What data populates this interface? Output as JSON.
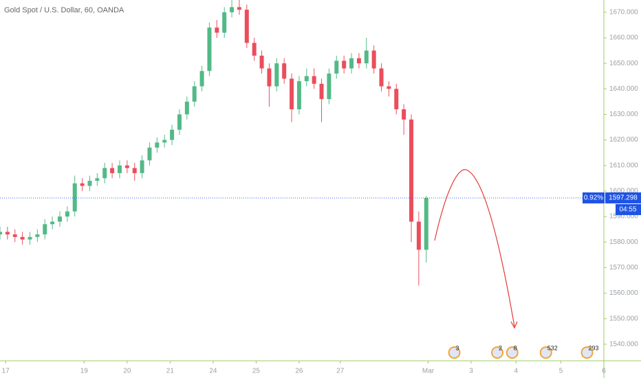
{
  "chart_data": {
    "type": "candlestick",
    "title": "Gold Spot / U.S. Dollar, 60, OANDA",
    "up_color": "#53b987",
    "down_color": "#eb4d5c",
    "x": [
      0,
      4,
      8,
      12,
      16,
      20,
      24,
      28,
      32,
      36,
      40,
      44,
      48,
      52,
      56,
      60,
      64,
      68,
      72,
      76,
      80,
      84,
      88,
      92,
      96,
      100,
      104,
      108,
      112,
      116,
      120,
      124,
      128,
      132,
      136,
      140,
      144,
      148,
      152,
      156,
      160,
      164,
      168,
      172,
      176,
      180,
      184,
      188,
      192,
      196,
      200,
      204,
      208,
      212,
      216,
      220,
      224,
      228
    ],
    "open": [
      1583,
      1584,
      1583,
      1582,
      1581,
      1582,
      1583,
      1587,
      1588,
      1590,
      1592,
      1603,
      1602,
      1604,
      1605,
      1609,
      1607,
      1610,
      1609,
      1607,
      1612,
      1617,
      1619,
      1620,
      1624,
      1630,
      1635,
      1641,
      1647,
      1664,
      1662,
      1670,
      1672,
      1671,
      1658,
      1653,
      1648,
      1641,
      1650,
      1644,
      1632,
      1643,
      1645,
      1642,
      1636,
      1646,
      1651,
      1648,
      1652,
      1650,
      1655,
      1648,
      1641,
      1640,
      1632,
      1628,
      1588,
      1577
    ],
    "high": [
      1586,
      1586,
      1585,
      1584,
      1584,
      1585,
      1589,
      1590,
      1592,
      1594,
      1606,
      1605,
      1606,
      1607,
      1611,
      1611,
      1612,
      1612,
      1611,
      1614,
      1619,
      1621,
      1622,
      1626,
      1632,
      1637,
      1643,
      1649,
      1666,
      1667,
      1672,
      1676,
      1676,
      1673,
      1660,
      1655,
      1650,
      1652,
      1652,
      1646,
      1645,
      1648,
      1648,
      1644,
      1648,
      1653,
      1653,
      1654,
      1654,
      1660,
      1657,
      1650,
      1643,
      1642,
      1634,
      1630,
      1592,
      1598
    ],
    "low": [
      1581,
      1581,
      1580,
      1579,
      1579,
      1580,
      1581,
      1585,
      1586,
      1588,
      1590,
      1600,
      1600,
      1602,
      1603,
      1605,
      1605,
      1607,
      1604,
      1605,
      1610,
      1615,
      1617,
      1618,
      1622,
      1628,
      1633,
      1639,
      1645,
      1660,
      1660,
      1668,
      1669,
      1656,
      1651,
      1646,
      1633,
      1639,
      1642,
      1627,
      1630,
      1641,
      1640,
      1627,
      1634,
      1644,
      1646,
      1646,
      1648,
      1648,
      1646,
      1639,
      1637,
      1630,
      1622,
      1580,
      1563,
      1572
    ],
    "close": [
      1584,
      1583,
      1582,
      1581,
      1582,
      1583,
      1587,
      1588,
      1590,
      1592,
      1603,
      1602,
      1604,
      1605,
      1609,
      1607,
      1610,
      1609,
      1607,
      1612,
      1617,
      1619,
      1620,
      1624,
      1630,
      1635,
      1641,
      1647,
      1664,
      1662,
      1670,
      1672,
      1671,
      1658,
      1653,
      1648,
      1641,
      1650,
      1644,
      1632,
      1643,
      1645,
      1642,
      1636,
      1646,
      1651,
      1648,
      1652,
      1650,
      1655,
      1648,
      1641,
      1640,
      1632,
      1628,
      1588,
      1577,
      1597.298
    ],
    "xlim": [
      0,
      323
    ],
    "xticks": [
      {
        "value": 3,
        "label": "17"
      },
      {
        "value": 45,
        "label": "19"
      },
      {
        "value": 68,
        "label": "20"
      },
      {
        "value": 91,
        "label": "21"
      },
      {
        "value": 114,
        "label": "24"
      },
      {
        "value": 137,
        "label": "25"
      },
      {
        "value": 160,
        "label": "26"
      },
      {
        "value": 182,
        "label": "27"
      },
      {
        "value": 229,
        "label": "Mar"
      },
      {
        "value": 252,
        "label": "3"
      },
      {
        "value": 276,
        "label": "4"
      },
      {
        "value": 300,
        "label": "5"
      },
      {
        "value": 323,
        "label": "6"
      }
    ],
    "ylim": [
      1533.5,
      1674.8
    ],
    "yticks": [
      {
        "value": 1540,
        "label": "1540.000"
      },
      {
        "value": 1550,
        "label": "1550.000"
      },
      {
        "value": 1560,
        "label": "1560.000"
      },
      {
        "value": 1570,
        "label": "1570.000"
      },
      {
        "value": 1580,
        "label": "1580.000"
      },
      {
        "value": 1590,
        "label": "1590.000"
      },
      {
        "value": 1600,
        "label": "1600.000"
      },
      {
        "value": 1610,
        "label": "1610.000"
      },
      {
        "value": 1620,
        "label": "1620.000"
      },
      {
        "value": 1630,
        "label": "1630.000"
      },
      {
        "value": 1640,
        "label": "1640.000"
      },
      {
        "value": 1650,
        "label": "1650.000"
      },
      {
        "value": 1660,
        "label": "1660.000"
      },
      {
        "value": 1670,
        "label": "1670.000"
      }
    ],
    "last_price": 1597.298,
    "change_label": "0.92%",
    "countdown": "04:55",
    "events": [
      {
        "x": 243,
        "label": "3"
      },
      {
        "x": 266,
        "label": "2"
      },
      {
        "x": 274,
        "label": "8"
      },
      {
        "x": 292,
        "label": "532"
      },
      {
        "x": 314,
        "label": "293"
      }
    ]
  }
}
